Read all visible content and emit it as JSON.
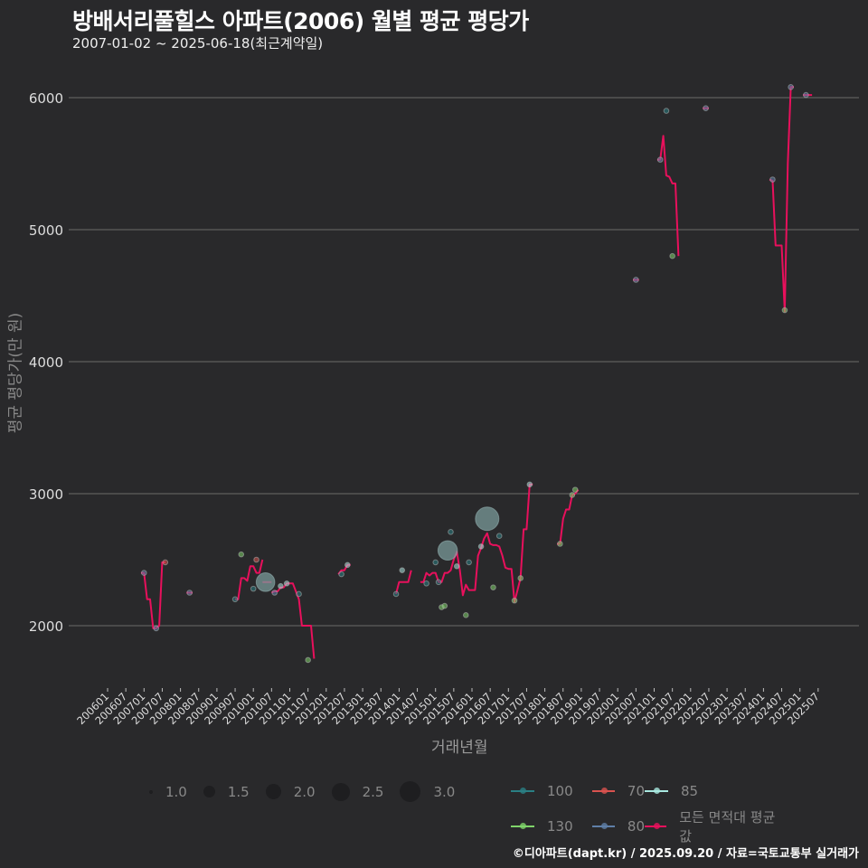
{
  "header": {
    "title": "방배서리풀힐스 아파트(2006) 월별 평균 평당가",
    "subtitle": "2007-01-02 ~ 2025-06-18(최근계약일)"
  },
  "axes": {
    "ylabel": "평균 평당가(만 원)",
    "xlabel": "거래년월"
  },
  "legend": {
    "size_title": "",
    "sizes": [
      {
        "label": "1.0",
        "d": 4
      },
      {
        "label": "1.5",
        "d": 13
      },
      {
        "label": "2.0",
        "d": 17
      },
      {
        "label": "2.5",
        "d": 20
      },
      {
        "label": "3.0",
        "d": 23
      }
    ],
    "areas": [
      {
        "label": "100",
        "color": "#2a7f84"
      },
      {
        "label": "70",
        "color": "#d9534f"
      },
      {
        "label": "85",
        "color": "#a8e8e0"
      },
      {
        "label": "130",
        "color": "#7fd46a"
      },
      {
        "label": "80",
        "color": "#5f7fa8"
      },
      {
        "label": "모든 면적대 평균값",
        "color": "#e8105c"
      }
    ]
  },
  "footer": {
    "credit": "©디아파트(dapt.kr) / 2025.09.20 / 자료=국토교통부 실거래가"
  },
  "chart_data": {
    "type": "line",
    "title": "방배서리풀힐스 아파트(2006) 월별 평균 평당가",
    "subtitle": "2007-01-02 ~ 2025-06-18(최근계약일)",
    "xlabel": "거래년월",
    "ylabel": "평균 평당가(만 원)",
    "ylim": [
      1600,
      6250
    ],
    "yticks": [
      2000,
      3000,
      4000,
      5000,
      6000
    ],
    "xticks": [
      "200601",
      "200607",
      "200701",
      "200707",
      "200801",
      "200807",
      "200901",
      "200907",
      "201001",
      "201007",
      "201101",
      "201107",
      "201201",
      "201207",
      "201301",
      "201307",
      "201401",
      "201407",
      "201501",
      "201507",
      "201601",
      "201607",
      "201701",
      "201707",
      "201801",
      "201807",
      "201901",
      "201907",
      "202001",
      "202007",
      "202101",
      "202107",
      "202201",
      "202207",
      "202301",
      "202307",
      "202401",
      "202407",
      "202501",
      "202507"
    ],
    "grid": "horizontal",
    "legend_position": "bottom",
    "series": [
      {
        "name": "모든 면적대 평균값",
        "color": "#e8105c",
        "segments": [
          [
            [
              "200612",
              2400
            ],
            [
              "200701",
              2400
            ],
            [
              "200702",
              2200
            ],
            [
              "200703",
              2200
            ],
            [
              "200704",
              1980
            ],
            [
              "200705",
              1980
            ],
            [
              "200706",
              2000
            ],
            [
              "200707",
              2480
            ],
            [
              "200708",
              2480
            ]
          ],
          [
            [
              "200803",
              2250
            ],
            [
              "200805",
              2250
            ]
          ],
          [
            [
              "200907",
              2200
            ],
            [
              "200908",
              2200
            ],
            [
              "200909",
              2360
            ],
            [
              "200910",
              2360
            ],
            [
              "200911",
              2340
            ],
            [
              "200912",
              2450
            ],
            [
              "201001",
              2450
            ],
            [
              "201002",
              2400
            ],
            [
              "201003",
              2400
            ],
            [
              "201004",
              2500
            ]
          ],
          [
            [
              "201004",
              2330
            ],
            [
              "201007",
              2330
            ]
          ],
          [
            [
              "201007",
              2250
            ],
            [
              "201008",
              2260
            ],
            [
              "201009",
              2260
            ],
            [
              "201010",
              2290
            ],
            [
              "201011",
              2290
            ],
            [
              "201012",
              2320
            ],
            [
              "201101",
              2320
            ],
            [
              "201102",
              2320
            ],
            [
              "201104",
              2200
            ],
            [
              "201105",
              2000
            ],
            [
              "201106",
              2000
            ],
            [
              "201107",
              2000
            ],
            [
              "201108",
              2000
            ],
            [
              "201109",
              1750
            ]
          ],
          [
            [
              "201205",
              2390
            ],
            [
              "201206",
              2420
            ],
            [
              "201207",
              2420
            ],
            [
              "201208",
              2460
            ],
            [
              "201209",
              2460
            ]
          ],
          [
            [
              "201312",
              2240
            ],
            [
              "201401",
              2330
            ],
            [
              "201402",
              2330
            ],
            [
              "201403",
              2330
            ],
            [
              "201404",
              2330
            ],
            [
              "201405",
              2420
            ]
          ],
          [
            [
              "201408",
              2330
            ],
            [
              "201409",
              2330
            ],
            [
              "201410",
              2400
            ],
            [
              "201411",
              2380
            ],
            [
              "201412",
              2400
            ],
            [
              "201501",
              2400
            ],
            [
              "201502",
              2330
            ],
            [
              "201503",
              2330
            ],
            [
              "201504",
              2400
            ],
            [
              "201505",
              2400
            ],
            [
              "201506",
              2420
            ],
            [
              "201507",
              2500
            ],
            [
              "201508",
              2560
            ],
            [
              "201509",
              2420
            ],
            [
              "201510",
              2230
            ],
            [
              "201511",
              2310
            ],
            [
              "201512",
              2270
            ],
            [
              "201601",
              2270
            ],
            [
              "201602",
              2270
            ],
            [
              "201603",
              2530
            ],
            [
              "201604",
              2590
            ],
            [
              "201605",
              2660
            ],
            [
              "201606",
              2700
            ],
            [
              "201607",
              2620
            ],
            [
              "201608",
              2610
            ],
            [
              "201609",
              2610
            ],
            [
              "201610",
              2600
            ],
            [
              "201611",
              2530
            ],
            [
              "201612",
              2440
            ],
            [
              "201701",
              2430
            ],
            [
              "201702",
              2430
            ],
            [
              "201703",
              2180
            ],
            [
              "201704",
              2270
            ],
            [
              "201705",
              2360
            ],
            [
              "201706",
              2730
            ],
            [
              "201707",
              2730
            ],
            [
              "201708",
              3070
            ],
            [
              "201709",
              3070
            ]
          ],
          [
            [
              "201805",
              2620
            ],
            [
              "201806",
              2620
            ],
            [
              "201807",
              2810
            ],
            [
              "201808",
              2880
            ],
            [
              "201809",
              2880
            ],
            [
              "201810",
              2990
            ],
            [
              "201811",
              3000
            ],
            [
              "201812",
              3030
            ]
          ],
          [
            [
              "202006",
              4620
            ],
            [
              "202008",
              4620
            ]
          ],
          [
            [
              "202102",
              5530
            ],
            [
              "202103",
              5530
            ],
            [
              "202104",
              5710
            ],
            [
              "202105",
              5410
            ],
            [
              "202106",
              5400
            ],
            [
              "202107",
              5350
            ],
            [
              "202108",
              5350
            ],
            [
              "202109",
              4800
            ]
          ],
          [
            [
              "202205",
              5920
            ],
            [
              "202207",
              5920
            ]
          ],
          [
            [
              "202403",
              5380
            ],
            [
              "202404",
              5370
            ],
            [
              "202405",
              4880
            ],
            [
              "202406",
              4880
            ],
            [
              "202407",
              4880
            ],
            [
              "202408",
              4380
            ],
            [
              "202409",
              5500
            ],
            [
              "202410",
              6080
            ],
            [
              "202411",
              6080
            ]
          ],
          [
            [
              "202502",
              6020
            ],
            [
              "202505",
              6020
            ]
          ]
        ]
      }
    ],
    "scatter": [
      {
        "x": "200701",
        "y": 2400,
        "area": "80",
        "size": 1.3
      },
      {
        "x": "200705",
        "y": 1980,
        "area": "80",
        "size": 1.3
      },
      {
        "x": "200708",
        "y": 2480,
        "area": "70",
        "size": 1.3
      },
      {
        "x": "200804",
        "y": 2250,
        "area": "80",
        "size": 1.3
      },
      {
        "x": "200907",
        "y": 2200,
        "area": "100",
        "size": 1.3
      },
      {
        "x": "200909",
        "y": 2540,
        "area": "130",
        "size": 1.3
      },
      {
        "x": "201001",
        "y": 2280,
        "area": "100",
        "size": 1.3
      },
      {
        "x": "201002",
        "y": 2500,
        "area": "70",
        "size": 1.3
      },
      {
        "x": "201005",
        "y": 2330,
        "area": "85",
        "size": 2.4
      },
      {
        "x": "201008",
        "y": 2250,
        "area": "80",
        "size": 1.3
      },
      {
        "x": "201010",
        "y": 2300,
        "area": "85",
        "size": 1.3
      },
      {
        "x": "201012",
        "y": 2320,
        "area": "85",
        "size": 1.3
      },
      {
        "x": "201104",
        "y": 2240,
        "area": "100",
        "size": 1.3
      },
      {
        "x": "201107",
        "y": 1740,
        "area": "130",
        "size": 1.3
      },
      {
        "x": "201206",
        "y": 2390,
        "area": "100",
        "size": 1.3
      },
      {
        "x": "201208",
        "y": 2460,
        "area": "85",
        "size": 1.3
      },
      {
        "x": "201312",
        "y": 2240,
        "area": "100",
        "size": 1.3
      },
      {
        "x": "201402",
        "y": 2420,
        "area": "85",
        "size": 1.3
      },
      {
        "x": "201410",
        "y": 2320,
        "area": "100",
        "size": 1.3
      },
      {
        "x": "201501",
        "y": 2480,
        "area": "100",
        "size": 1.3
      },
      {
        "x": "201502",
        "y": 2330,
        "area": "100",
        "size": 1.3
      },
      {
        "x": "201503",
        "y": 2140,
        "area": "130",
        "size": 1.3
      },
      {
        "x": "201504",
        "y": 2150,
        "area": "130",
        "size": 1.3
      },
      {
        "x": "201505",
        "y": 2570,
        "area": "85",
        "size": 2.5
      },
      {
        "x": "201506",
        "y": 2710,
        "area": "100",
        "size": 1.3
      },
      {
        "x": "201508",
        "y": 2450,
        "area": "85",
        "size": 1.3
      },
      {
        "x": "201511",
        "y": 2080,
        "area": "130",
        "size": 1.3
      },
      {
        "x": "201512",
        "y": 2480,
        "area": "100",
        "size": 1.3
      },
      {
        "x": "201604",
        "y": 2600,
        "area": "85",
        "size": 1.3
      },
      {
        "x": "201606",
        "y": 2810,
        "area": "85",
        "size": 3.0
      },
      {
        "x": "201608",
        "y": 2290,
        "area": "130",
        "size": 1.3
      },
      {
        "x": "201610",
        "y": 2680,
        "area": "100",
        "size": 1.3
      },
      {
        "x": "201703",
        "y": 2190,
        "area": "130",
        "size": 1.3
      },
      {
        "x": "201705",
        "y": 2360,
        "area": "130",
        "size": 1.3
      },
      {
        "x": "201708",
        "y": 3070,
        "area": "85",
        "size": 1.3
      },
      {
        "x": "201806",
        "y": 2620,
        "area": "130",
        "size": 1.3
      },
      {
        "x": "201810",
        "y": 2990,
        "area": "130",
        "size": 1.3
      },
      {
        "x": "201811",
        "y": 3030,
        "area": "130",
        "size": 1.3
      },
      {
        "x": "202007",
        "y": 4620,
        "area": "80",
        "size": 1.3
      },
      {
        "x": "202103",
        "y": 5530,
        "area": "80",
        "size": 1.3
      },
      {
        "x": "202105",
        "y": 5900,
        "area": "100",
        "size": 1.3
      },
      {
        "x": "202107",
        "y": 4800,
        "area": "130",
        "size": 1.3
      },
      {
        "x": "202206",
        "y": 5920,
        "area": "80",
        "size": 1.3
      },
      {
        "x": "202404",
        "y": 5380,
        "area": "80",
        "size": 1.3
      },
      {
        "x": "202408",
        "y": 4390,
        "area": "130",
        "size": 1.3
      },
      {
        "x": "202410",
        "y": 6080,
        "area": "80",
        "size": 1.3
      },
      {
        "x": "202503",
        "y": 6020,
        "area": "80",
        "size": 1.3
      }
    ]
  }
}
